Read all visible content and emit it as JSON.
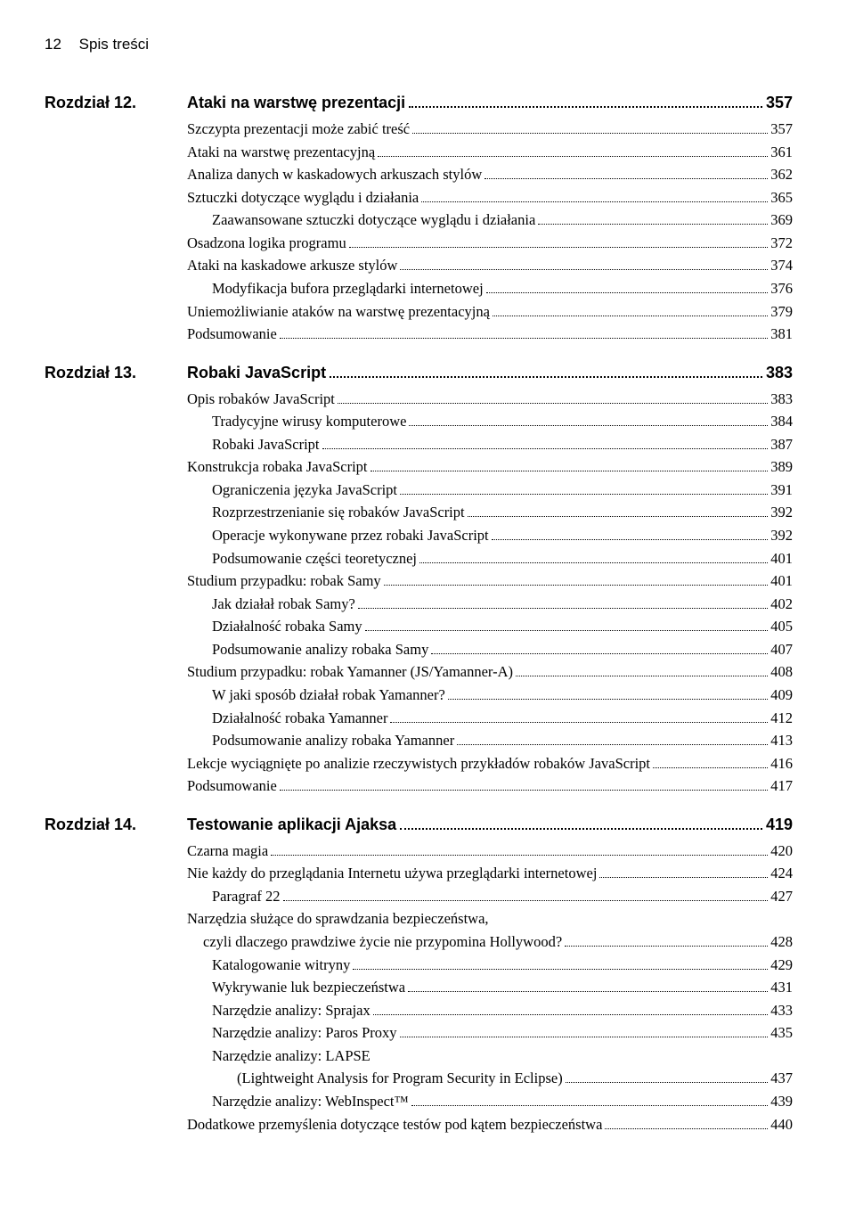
{
  "header": {
    "pagenum": "12",
    "title": "Spis treści"
  },
  "chapters": [
    {
      "label": "Rozdział 12.",
      "title": "Ataki na warstwę prezentacji",
      "page": "357",
      "items": [
        {
          "text": "Szczypta prezentacji może zabić treść",
          "page": "357",
          "indent": 1
        },
        {
          "text": "Ataki na warstwę prezentacyjną",
          "page": "361",
          "indent": 1
        },
        {
          "text": "Analiza danych w kaskadowych arkuszach stylów",
          "page": "362",
          "indent": 1
        },
        {
          "text": "Sztuczki dotyczące wyglądu i działania",
          "page": "365",
          "indent": 1
        },
        {
          "text": "Zaawansowane sztuczki dotyczące wyglądu i działania",
          "page": "369",
          "indent": 2
        },
        {
          "text": "Osadzona logika programu",
          "page": "372",
          "indent": 1
        },
        {
          "text": "Ataki na kaskadowe arkusze stylów",
          "page": "374",
          "indent": 1
        },
        {
          "text": "Modyfikacja bufora przeglądarki internetowej",
          "page": "376",
          "indent": 2
        },
        {
          "text": "Uniemożliwianie ataków na warstwę prezentacyjną",
          "page": "379",
          "indent": 1
        },
        {
          "text": "Podsumowanie",
          "page": "381",
          "indent": 1
        }
      ]
    },
    {
      "label": "Rozdział 13.",
      "title": "Robaki JavaScript",
      "page": "383",
      "items": [
        {
          "text": "Opis robaków JavaScript",
          "page": "383",
          "indent": 1
        },
        {
          "text": "Tradycyjne wirusy komputerowe",
          "page": "384",
          "indent": 2
        },
        {
          "text": "Robaki JavaScript",
          "page": "387",
          "indent": 2
        },
        {
          "text": "Konstrukcja robaka JavaScript",
          "page": "389",
          "indent": 1
        },
        {
          "text": "Ograniczenia języka JavaScript",
          "page": "391",
          "indent": 2
        },
        {
          "text": "Rozprzestrzenianie się robaków JavaScript",
          "page": "392",
          "indent": 2
        },
        {
          "text": "Operacje wykonywane przez robaki JavaScript",
          "page": "392",
          "indent": 2
        },
        {
          "text": "Podsumowanie części teoretycznej",
          "page": "401",
          "indent": 2
        },
        {
          "text": "Studium przypadku: robak Samy",
          "page": "401",
          "indent": 1
        },
        {
          "text": "Jak działał robak Samy?",
          "page": "402",
          "indent": 2
        },
        {
          "text": "Działalność robaka Samy",
          "page": "405",
          "indent": 2
        },
        {
          "text": "Podsumowanie analizy robaka Samy",
          "page": "407",
          "indent": 2
        },
        {
          "text": "Studium przypadku: robak Yamanner (JS/Yamanner-A)",
          "page": "408",
          "indent": 1
        },
        {
          "text": "W jaki sposób działał robak Yamanner?",
          "page": "409",
          "indent": 2
        },
        {
          "text": "Działalność robaka Yamanner",
          "page": "412",
          "indent": 2
        },
        {
          "text": "Podsumowanie analizy robaka Yamanner",
          "page": "413",
          "indent": 2
        },
        {
          "text": "Lekcje wyciągnięte po analizie rzeczywistych przykładów robaków JavaScript",
          "page": "416",
          "indent": 1
        },
        {
          "text": "Podsumowanie",
          "page": "417",
          "indent": 1
        }
      ]
    },
    {
      "label": "Rozdział 14.",
      "title": "Testowanie aplikacji Ajaksa",
      "page": "419",
      "items": [
        {
          "text": "Czarna magia",
          "page": "420",
          "indent": 1
        },
        {
          "text": "Nie każdy do przeglądania Internetu używa przeglądarki internetowej",
          "page": "424",
          "indent": 1
        },
        {
          "text": "Paragraf 22",
          "page": "427",
          "indent": 2
        },
        {
          "cont": "Narzędzia służące do sprawdzania bezpieczeństwa,",
          "indent": 1
        },
        {
          "text": "czyli dlaczego prawdziwe życie nie przypomina Hollywood?",
          "page": "428",
          "indent": 1,
          "contIndent": 3
        },
        {
          "text": "Katalogowanie witryny",
          "page": "429",
          "indent": 2
        },
        {
          "text": "Wykrywanie luk bezpieczeństwa",
          "page": "431",
          "indent": 2
        },
        {
          "text": "Narzędzie analizy: Sprajax",
          "page": "433",
          "indent": 2
        },
        {
          "text": "Narzędzie analizy: Paros Proxy",
          "page": "435",
          "indent": 2
        },
        {
          "cont": "Narzędzie analizy: LAPSE",
          "indent": 2
        },
        {
          "text": "(Lightweight Analysis for Program Security in Eclipse)",
          "page": "437",
          "indent": 2,
          "contIndent": 4
        },
        {
          "text": "Narzędzie analizy: WebInspect™",
          "page": "439",
          "indent": 2
        },
        {
          "text": "Dodatkowe przemyślenia dotyczące testów pod kątem bezpieczeństwa",
          "page": "440",
          "indent": 1
        }
      ]
    }
  ]
}
